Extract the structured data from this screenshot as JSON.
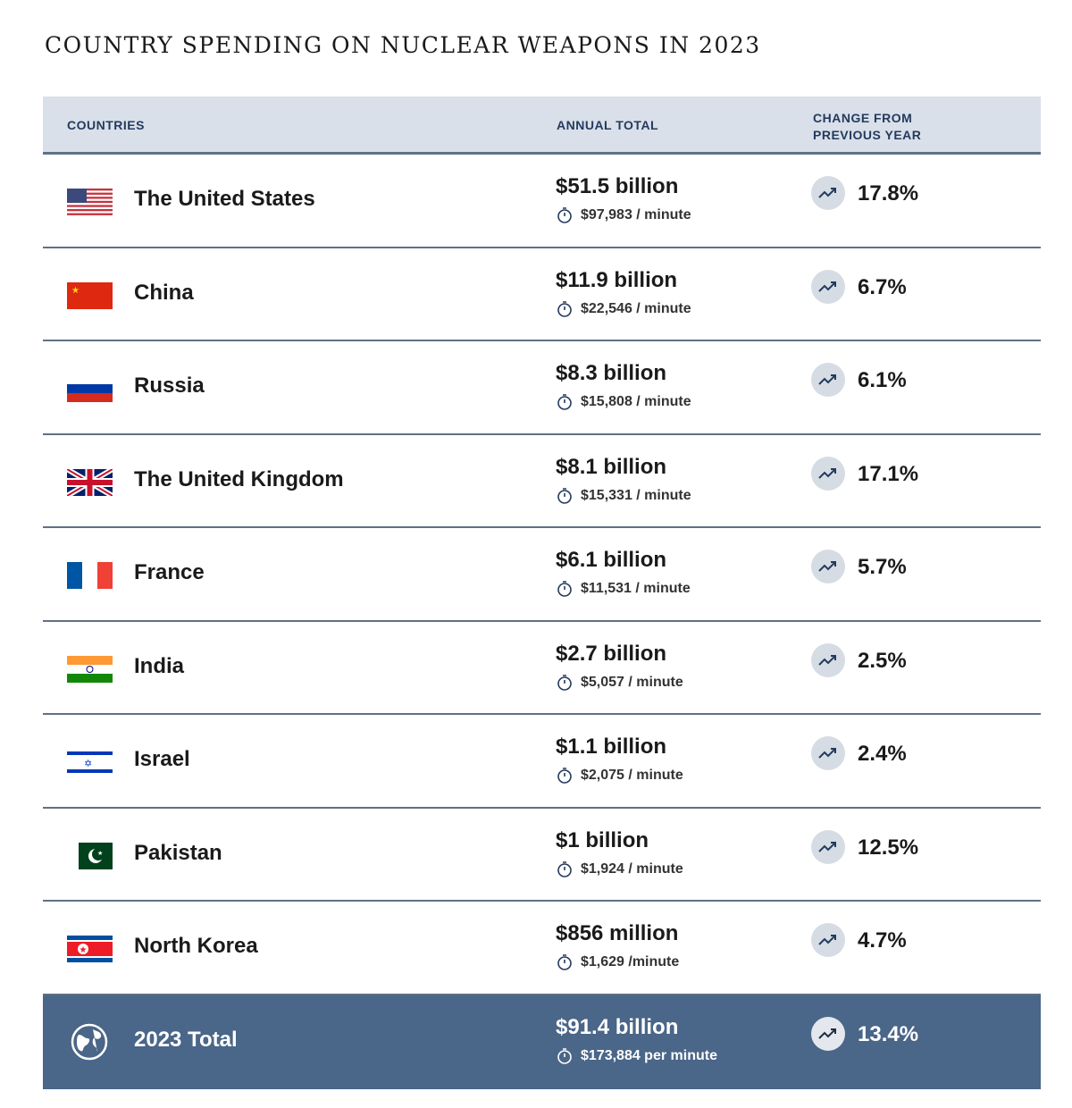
{
  "title": "COUNTRY SPENDING ON NUCLEAR WEAPONS IN 2023",
  "headers": {
    "countries": "COUNTRIES",
    "annual": "ANNUAL TOTAL",
    "change_1": "CHANGE FROM",
    "change_2": "PREVIOUS YEAR"
  },
  "rows": [
    {
      "country": "The United States",
      "flag": "us",
      "annual": "$51.5 billion",
      "per_minute": "$97,983 / minute",
      "change": "17.8%"
    },
    {
      "country": "China",
      "flag": "cn",
      "annual": "$11.9 billion",
      "per_minute": "$22,546 / minute",
      "change": "6.7%"
    },
    {
      "country": "Russia",
      "flag": "ru",
      "annual": "$8.3 billion",
      "per_minute": "$15,808 / minute",
      "change": "6.1%"
    },
    {
      "country": "The United Kingdom",
      "flag": "uk",
      "annual": "$8.1 billion",
      "per_minute": "$15,331 / minute",
      "change": "17.1%"
    },
    {
      "country": "France",
      "flag": "fr",
      "annual": "$6.1 billion",
      "per_minute": "$11,531 / minute",
      "change": "5.7%"
    },
    {
      "country": "India",
      "flag": "in",
      "annual": "$2.7 billion",
      "per_minute": "$5,057 / minute",
      "change": "2.5%"
    },
    {
      "country": "Israel",
      "flag": "il",
      "annual": "$1.1 billion",
      "per_minute": "$2,075 / minute",
      "change": "2.4%"
    },
    {
      "country": "Pakistan",
      "flag": "pk",
      "annual": "$1 billion",
      "per_minute": "$1,924 / minute",
      "change": "12.5%"
    },
    {
      "country": "North Korea",
      "flag": "kp",
      "annual": "$856 million",
      "per_minute": "$1,629 /minute",
      "change": "4.7%"
    }
  ],
  "total": {
    "label": "2023 Total",
    "annual": "$91.4 billion",
    "per_minute": "$173,884 per minute",
    "change": "13.4%"
  },
  "colors": {
    "header_bg": "#d9e0ea",
    "header_text": "#243a5e",
    "total_bg": "#4a6688",
    "divider": "#5f7185"
  },
  "chart_data": {
    "type": "table",
    "title": "COUNTRY SPENDING ON NUCLEAR WEAPONS IN 2023",
    "columns": [
      "COUNTRIES",
      "ANNUAL TOTAL",
      "CHANGE FROM PREVIOUS YEAR"
    ],
    "categories": [
      "The United States",
      "China",
      "Russia",
      "The United Kingdom",
      "France",
      "India",
      "Israel",
      "Pakistan",
      "North Korea"
    ],
    "series": [
      {
        "name": "Annual total (USD billion)",
        "values": [
          51.5,
          11.9,
          8.3,
          8.1,
          6.1,
          2.7,
          1.1,
          1.0,
          0.856
        ]
      },
      {
        "name": "Per minute (USD)",
        "values": [
          97983,
          22546,
          15808,
          15331,
          11531,
          5057,
          2075,
          1924,
          1629
        ]
      },
      {
        "name": "Change from previous year (%)",
        "values": [
          17.8,
          6.7,
          6.1,
          17.1,
          5.7,
          2.5,
          2.4,
          12.5,
          4.7
        ]
      }
    ],
    "total": {
      "annual_billion": 91.4,
      "per_minute": 173884,
      "change_pct": 13.4
    }
  }
}
